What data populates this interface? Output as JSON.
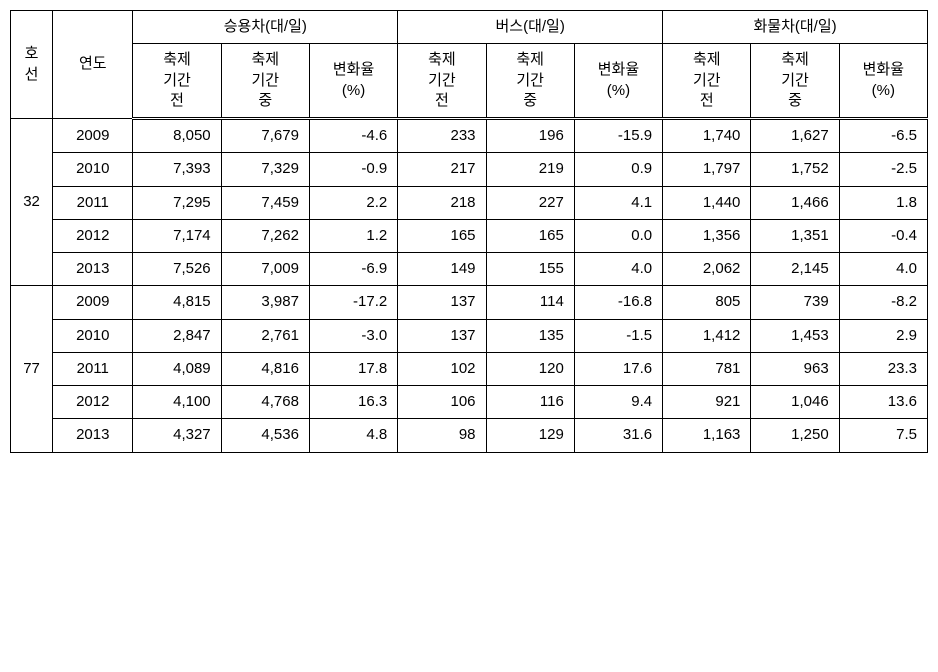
{
  "table": {
    "headers": {
      "route": "호\n선",
      "year": "연도",
      "groups": [
        {
          "title": "승용차(대/일)"
        },
        {
          "title": "버스(대/일)"
        },
        {
          "title": "화물차(대/일)"
        }
      ],
      "sub": {
        "before": "축제\n기간\n전",
        "during": "축제\n기간\n중",
        "rate": "변화율\n(%)"
      }
    },
    "routes": [
      {
        "id": "32",
        "rows": [
          {
            "year": "2009",
            "car_b": "8,050",
            "car_d": "7,679",
            "car_r": "-4.6",
            "bus_b": "233",
            "bus_d": "196",
            "bus_r": "-15.9",
            "trk_b": "1,740",
            "trk_d": "1,627",
            "trk_r": "-6.5"
          },
          {
            "year": "2010",
            "car_b": "7,393",
            "car_d": "7,329",
            "car_r": "-0.9",
            "bus_b": "217",
            "bus_d": "219",
            "bus_r": "0.9",
            "trk_b": "1,797",
            "trk_d": "1,752",
            "trk_r": "-2.5"
          },
          {
            "year": "2011",
            "car_b": "7,295",
            "car_d": "7,459",
            "car_r": "2.2",
            "bus_b": "218",
            "bus_d": "227",
            "bus_r": "4.1",
            "trk_b": "1,440",
            "trk_d": "1,466",
            "trk_r": "1.8"
          },
          {
            "year": "2012",
            "car_b": "7,174",
            "car_d": "7,262",
            "car_r": "1.2",
            "bus_b": "165",
            "bus_d": "165",
            "bus_r": "0.0",
            "trk_b": "1,356",
            "trk_d": "1,351",
            "trk_r": "-0.4"
          },
          {
            "year": "2013",
            "car_b": "7,526",
            "car_d": "7,009",
            "car_r": "-6.9",
            "bus_b": "149",
            "bus_d": "155",
            "bus_r": "4.0",
            "trk_b": "2,062",
            "trk_d": "2,145",
            "trk_r": "4.0"
          }
        ]
      },
      {
        "id": "77",
        "rows": [
          {
            "year": "2009",
            "car_b": "4,815",
            "car_d": "3,987",
            "car_r": "-17.2",
            "bus_b": "137",
            "bus_d": "114",
            "bus_r": "-16.8",
            "trk_b": "805",
            "trk_d": "739",
            "trk_r": "-8.2"
          },
          {
            "year": "2010",
            "car_b": "2,847",
            "car_d": "2,761",
            "car_r": "-3.0",
            "bus_b": "137",
            "bus_d": "135",
            "bus_r": "-1.5",
            "trk_b": "1,412",
            "trk_d": "1,453",
            "trk_r": "2.9"
          },
          {
            "year": "2011",
            "car_b": "4,089",
            "car_d": "4,816",
            "car_r": "17.8",
            "bus_b": "102",
            "bus_d": "120",
            "bus_r": "17.6",
            "trk_b": "781",
            "trk_d": "963",
            "trk_r": "23.3"
          },
          {
            "year": "2012",
            "car_b": "4,100",
            "car_d": "4,768",
            "car_r": "16.3",
            "bus_b": "106",
            "bus_d": "116",
            "bus_r": "9.4",
            "trk_b": "921",
            "trk_d": "1,046",
            "trk_r": "13.6"
          },
          {
            "year": "2013",
            "car_b": "4,327",
            "car_d": "4,536",
            "car_r": "4.8",
            "bus_b": "98",
            "bus_d": "129",
            "bus_r": "31.6",
            "trk_b": "1,163",
            "trk_d": "1,250",
            "trk_r": "7.5"
          }
        ]
      }
    ]
  }
}
